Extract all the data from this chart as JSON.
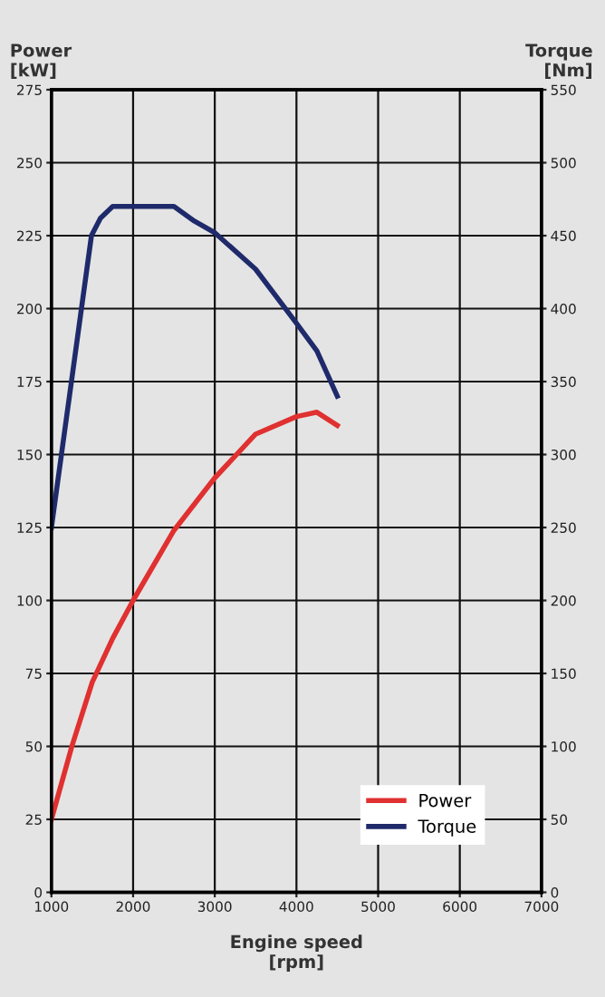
{
  "chart_data": {
    "type": "line",
    "xlabel": "Engine speed\n[rpm]",
    "ylabel": "Power\n[kW]",
    "y2label": "Torque\n[Nm]",
    "x": [
      1000,
      1250,
      1500,
      1750,
      2000,
      2500,
      3000,
      3500,
      4000,
      4250,
      4500
    ],
    "series": [
      {
        "name": "Power",
        "color": "#e03030",
        "values": [
          25,
          50,
          72,
          87,
          100,
          124,
          142,
          157,
          163,
          164.5,
          160
        ]
      },
      {
        "name": "Torque",
        "color": "#1f2a6b",
        "axis": "y2",
        "x": [
          1000,
          1490,
          1600,
          1750,
          2500,
          2750,
          3000,
          3500,
          4000,
          4250,
          4500
        ],
        "values": [
          250,
          450,
          462,
          470,
          470,
          460,
          452,
          427,
          390,
          371,
          340
        ]
      }
    ],
    "xlim": [
      1000,
      7000
    ],
    "xticks": [
      1000,
      2000,
      3000,
      4000,
      5000,
      6000,
      7000
    ],
    "ylim": [
      0,
      275
    ],
    "yticks": [
      0,
      25,
      50,
      75,
      100,
      125,
      150,
      175,
      200,
      225,
      250,
      275
    ],
    "y2lim": [
      0,
      550
    ],
    "y2ticks": [
      0,
      50,
      100,
      150,
      200,
      250,
      300,
      350,
      400,
      450,
      500,
      550
    ],
    "grid": true,
    "legend": "bottom right",
    "line_style": "solid",
    "marker": "none"
  }
}
